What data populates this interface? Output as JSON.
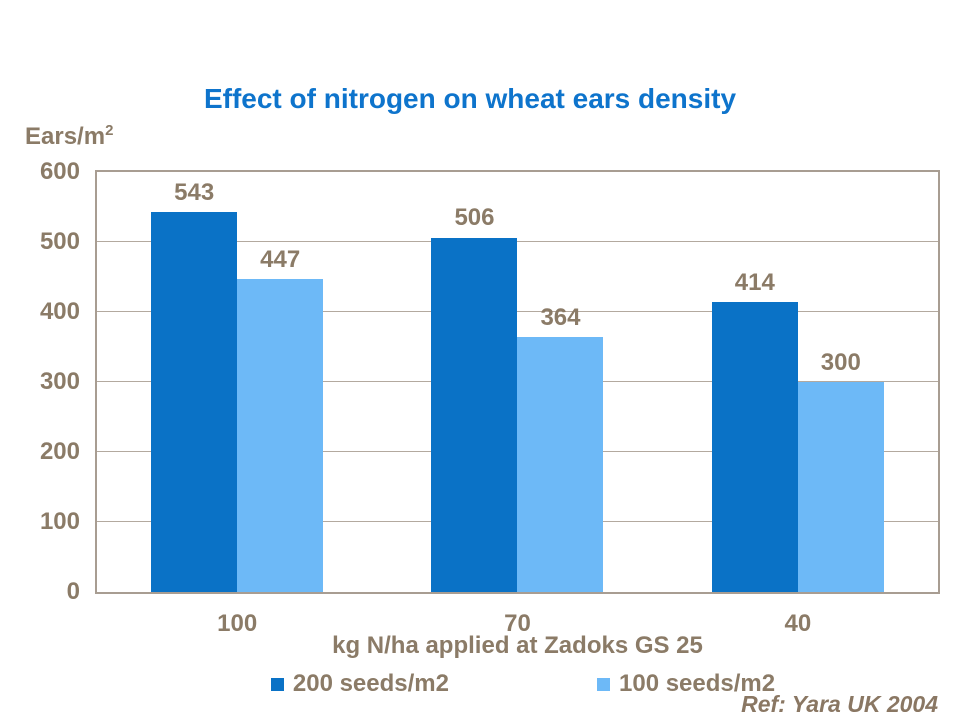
{
  "slide": {
    "ref_note": "Ref: Yara UK 2004"
  },
  "chart_data": {
    "type": "bar",
    "title": "Effect of nitrogen on wheat ears density",
    "ylabel": "Ears/m2",
    "ylabel_display": {
      "base": "Ears/m",
      "sup": "2"
    },
    "xlabel": "kg N/ha applied at Zadoks GS 25",
    "categories": [
      "100",
      "70",
      "40"
    ],
    "series": [
      {
        "name": "200 seeds/m2",
        "color": "#0A72C6",
        "values": [
          543,
          506,
          414
        ]
      },
      {
        "name": "100 seeds/m2",
        "color": "#6DB9F7",
        "values": [
          447,
          364,
          300
        ]
      }
    ],
    "ylim": [
      0,
      600
    ],
    "yticks": [
      0,
      100,
      200,
      300,
      400,
      500,
      600
    ],
    "grid": true,
    "grid_axis": "y",
    "legend_position": "bottom",
    "bar_value_labels": true
  },
  "theme": {
    "background": "#FFFFFF",
    "title_color": "#0E74CC",
    "text_color": "#8B7B67",
    "axis_border_color": "#A89D92",
    "gridline_color": "#B3A99F",
    "ref_color": "#8A7763"
  }
}
